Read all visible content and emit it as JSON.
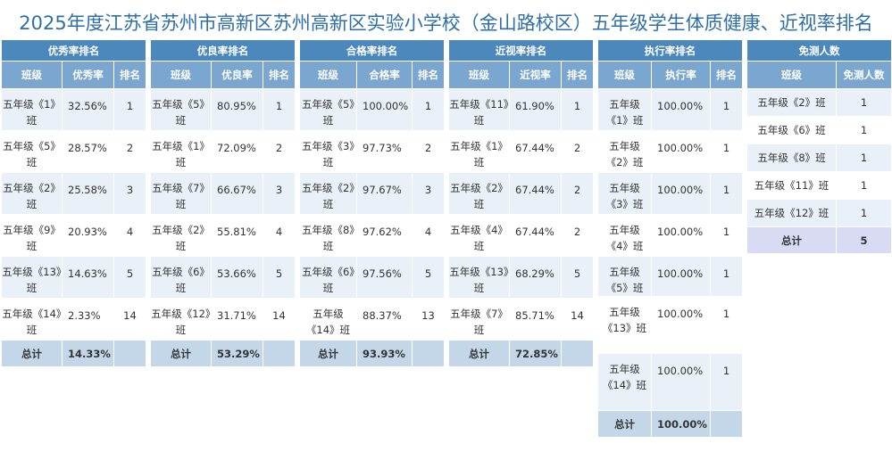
{
  "title": "2025年度江苏省苏州市高新区苏州高新区实验小学校（金山路校区）五年级学生体质健康、近视率排名",
  "tables": [
    {
      "title": "优秀率排名",
      "headers": [
        "班级",
        "优秀率",
        "排名"
      ],
      "rows": [
        [
          "五年级《1》班",
          "32.56%",
          "1"
        ],
        [
          "五年级《5》班",
          "28.57%",
          "2"
        ],
        [
          "五年级《2》班",
          "25.58%",
          "3"
        ],
        [
          "五年级《9》班",
          "20.93%",
          "4"
        ],
        [
          "五年级《13》班",
          "14.63%",
          "5"
        ],
        [
          "五年级《14》班",
          "2.33%",
          "14"
        ]
      ],
      "total": [
        "总计",
        "14.33%"
      ]
    },
    {
      "title": "优良率排名",
      "headers": [
        "班级",
        "优良率",
        "排名"
      ],
      "rows": [
        [
          "五年级《5》班",
          "80.95%",
          "1"
        ],
        [
          "五年级《1》班",
          "72.09%",
          "2"
        ],
        [
          "五年级《7》班",
          "66.67%",
          "3"
        ],
        [
          "五年级《2》班",
          "55.81%",
          "4"
        ],
        [
          "五年级《6》班",
          "53.66%",
          "5"
        ],
        [
          "五年级《12》班",
          "31.71%",
          "14"
        ]
      ],
      "total": [
        "总计",
        "53.29%"
      ]
    },
    {
      "title": "合格率排名",
      "headers": [
        "班级",
        "合格率",
        "排名"
      ],
      "rows": [
        [
          "五年级《5》班",
          "100.00%",
          "1"
        ],
        [
          "五年级《3》班",
          "97.73%",
          "2"
        ],
        [
          "五年级《2》班",
          "97.67%",
          "3"
        ],
        [
          "五年级《8》班",
          "97.62%",
          "4"
        ],
        [
          "五年级《6》班",
          "97.56%",
          "5"
        ],
        [
          "五年级《14》班",
          "88.37%",
          "13"
        ]
      ],
      "total": [
        "总计",
        "93.93%"
      ]
    },
    {
      "title": "近视率排名",
      "headers": [
        "班级",
        "近视率",
        "排名"
      ],
      "rows": [
        [
          "五年级《11》班",
          "61.90%",
          "1"
        ],
        [
          "五年级《1》班",
          "67.44%",
          "2"
        ],
        [
          "五年级《2》班",
          "67.44%",
          "2"
        ],
        [
          "五年级《4》班",
          "67.44%",
          "2"
        ],
        [
          "五年级《13》班",
          "68.29%",
          "5"
        ],
        [
          "五年级《7》班",
          "85.71%",
          "14"
        ]
      ],
      "total": [
        "总计",
        "72.85%"
      ]
    },
    {
      "title": "执行率排名",
      "headers": [
        "班级",
        "执行率",
        "排名"
      ],
      "rows": [
        [
          "五年级《1》班",
          "100.00%",
          "1"
        ],
        [
          "五年级《2》班",
          "100.00%",
          "1"
        ],
        [
          "五年级《3》班",
          "100.00%",
          "1"
        ],
        [
          "五年级《4》班",
          "100.00%",
          "1"
        ],
        [
          "五年级《5》班",
          "100.00%",
          "1"
        ],
        [
          "五年级《13》班",
          "100.00%",
          "1"
        ],
        [
          "五年级《14》班",
          "100.00%",
          "1"
        ]
      ],
      "total": [
        "总计",
        "100.00%"
      ]
    }
  ],
  "exempt": {
    "title": "免测人数",
    "headers": [
      "班级",
      "免测人数"
    ],
    "rows": [
      [
        "五年级《2》班",
        "1"
      ],
      [
        "五年级《6》班",
        "1"
      ],
      [
        "五年级《8》班",
        "1"
      ],
      [
        "五年级《11》班",
        "1"
      ],
      [
        "五年级《12》班",
        "1"
      ]
    ],
    "total": [
      "总计",
      "5"
    ]
  }
}
